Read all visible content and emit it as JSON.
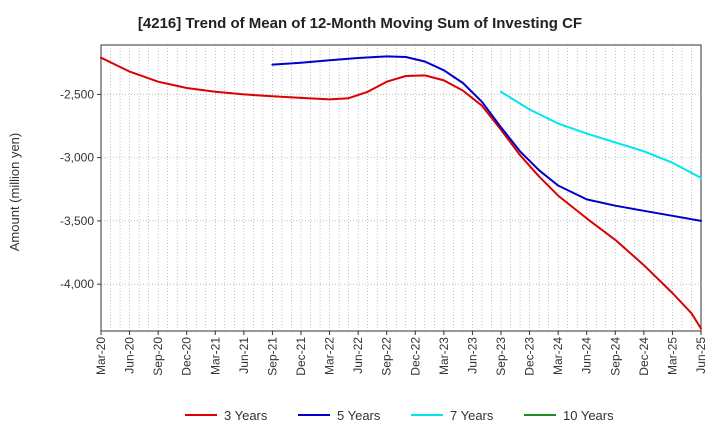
{
  "chart_data": {
    "type": "line",
    "title": "[4216]  Trend of Mean of 12-Month Moving Sum of Investing CF",
    "xlabel": "",
    "ylabel": "Amount (million yen)",
    "ylim": [
      -4370,
      -2110
    ],
    "yticks": [
      -2500,
      -3000,
      -3500,
      -4000
    ],
    "ytick_labels": [
      "-2,500",
      "-3,000",
      "-3,500",
      "-4,000"
    ],
    "x_index_range": [
      0,
      63
    ],
    "xtick_labels": [
      "Mar-20",
      "Jun-20",
      "Sep-20",
      "Dec-20",
      "Mar-21",
      "Jun-21",
      "Sep-21",
      "Dec-21",
      "Mar-22",
      "Jun-22",
      "Sep-22",
      "Dec-22",
      "Mar-23",
      "Jun-23",
      "Sep-23",
      "Dec-23",
      "Mar-24",
      "Jun-24",
      "Sep-24",
      "Dec-24",
      "Mar-25",
      "Jun-25"
    ],
    "grid": true,
    "legend_position": "bottom",
    "series": [
      {
        "name": "3 Years",
        "color": "#dd0000",
        "points": [
          [
            0,
            -2210
          ],
          [
            3,
            -2320
          ],
          [
            6,
            -2400
          ],
          [
            9,
            -2450
          ],
          [
            12,
            -2480
          ],
          [
            15,
            -2500
          ],
          [
            18,
            -2515
          ],
          [
            21,
            -2528
          ],
          [
            24,
            -2540
          ],
          [
            26,
            -2530
          ],
          [
            28,
            -2480
          ],
          [
            30,
            -2400
          ],
          [
            32,
            -2355
          ],
          [
            34,
            -2350
          ],
          [
            36,
            -2390
          ],
          [
            38,
            -2470
          ],
          [
            40,
            -2590
          ],
          [
            42,
            -2780
          ],
          [
            44,
            -2980
          ],
          [
            46,
            -3150
          ],
          [
            48,
            -3300
          ],
          [
            51,
            -3480
          ],
          [
            54,
            -3650
          ],
          [
            57,
            -3850
          ],
          [
            60,
            -4070
          ],
          [
            62,
            -4230
          ],
          [
            63,
            -4350
          ]
        ]
      },
      {
        "name": "5 Years",
        "color": "#0000cc",
        "points": [
          [
            18,
            -2265
          ],
          [
            21,
            -2250
          ],
          [
            24,
            -2230
          ],
          [
            27,
            -2213
          ],
          [
            30,
            -2200
          ],
          [
            32,
            -2205
          ],
          [
            34,
            -2240
          ],
          [
            36,
            -2310
          ],
          [
            38,
            -2410
          ],
          [
            40,
            -2560
          ],
          [
            42,
            -2760
          ],
          [
            44,
            -2950
          ],
          [
            46,
            -3100
          ],
          [
            48,
            -3220
          ],
          [
            51,
            -3330
          ],
          [
            54,
            -3380
          ],
          [
            57,
            -3420
          ],
          [
            60,
            -3460
          ],
          [
            63,
            -3500
          ]
        ]
      },
      {
        "name": "7 Years",
        "color": "#00e5ee",
        "points": [
          [
            42,
            -2480
          ],
          [
            45,
            -2620
          ],
          [
            48,
            -2730
          ],
          [
            51,
            -2810
          ],
          [
            54,
            -2880
          ],
          [
            57,
            -2950
          ],
          [
            60,
            -3040
          ],
          [
            63,
            -3160
          ]
        ]
      },
      {
        "name": "10 Years",
        "color": "#228b22",
        "points": []
      }
    ]
  }
}
